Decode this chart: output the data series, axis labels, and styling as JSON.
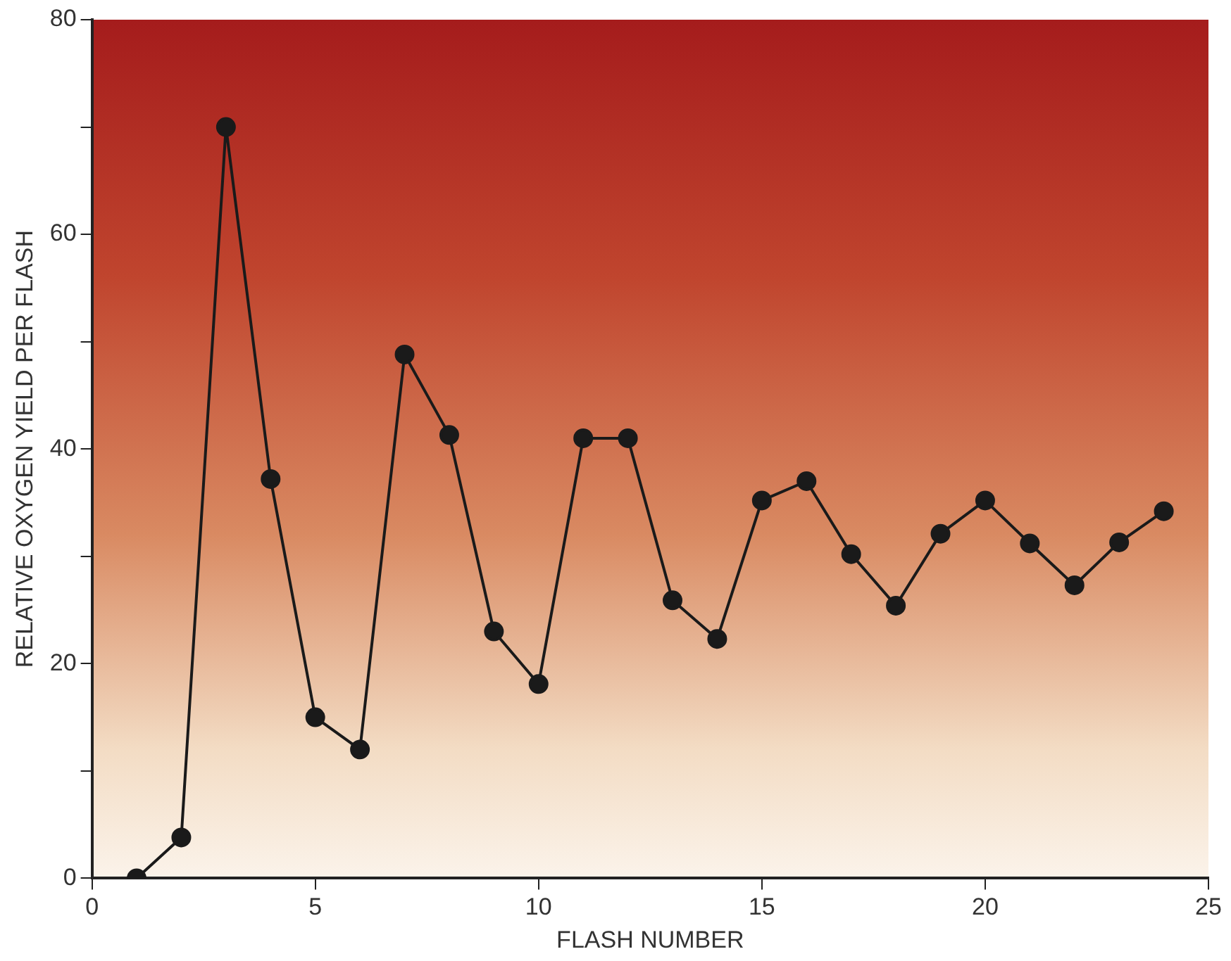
{
  "chart_data": {
    "type": "line",
    "xlabel": "FLASH NUMBER",
    "ylabel": "RELATIVE OXYGEN YIELD PER FLASH",
    "x": [
      1,
      2,
      3,
      4,
      5,
      6,
      7,
      8,
      9,
      10,
      11,
      12,
      13,
      14,
      15,
      16,
      17,
      18,
      19,
      20,
      21,
      22,
      23,
      24
    ],
    "series": [
      {
        "color": "#1a1a1a",
        "values": [
          0,
          3.8,
          70,
          37.2,
          15,
          12,
          48.8,
          41.3,
          23,
          18.1,
          41,
          41,
          25.9,
          22.3,
          35.2,
          37,
          30.2,
          25.4,
          32.1,
          35.2,
          31.2,
          27.3,
          31.3,
          34.2
        ]
      }
    ],
    "xlim": [
      0,
      25
    ],
    "xticks": [
      0,
      5,
      10,
      15,
      20,
      25
    ],
    "ylim": [
      0,
      80
    ],
    "yticks": [
      0,
      {
        "value": 10,
        "label": null
      },
      20,
      {
        "value": 30,
        "label": null
      },
      40,
      {
        "value": 50,
        "label": null
      },
      60,
      {
        "value": 70,
        "label": null
      },
      80
    ],
    "marker": "circle",
    "line_style": "solid",
    "grid": false,
    "legend": false
  }
}
